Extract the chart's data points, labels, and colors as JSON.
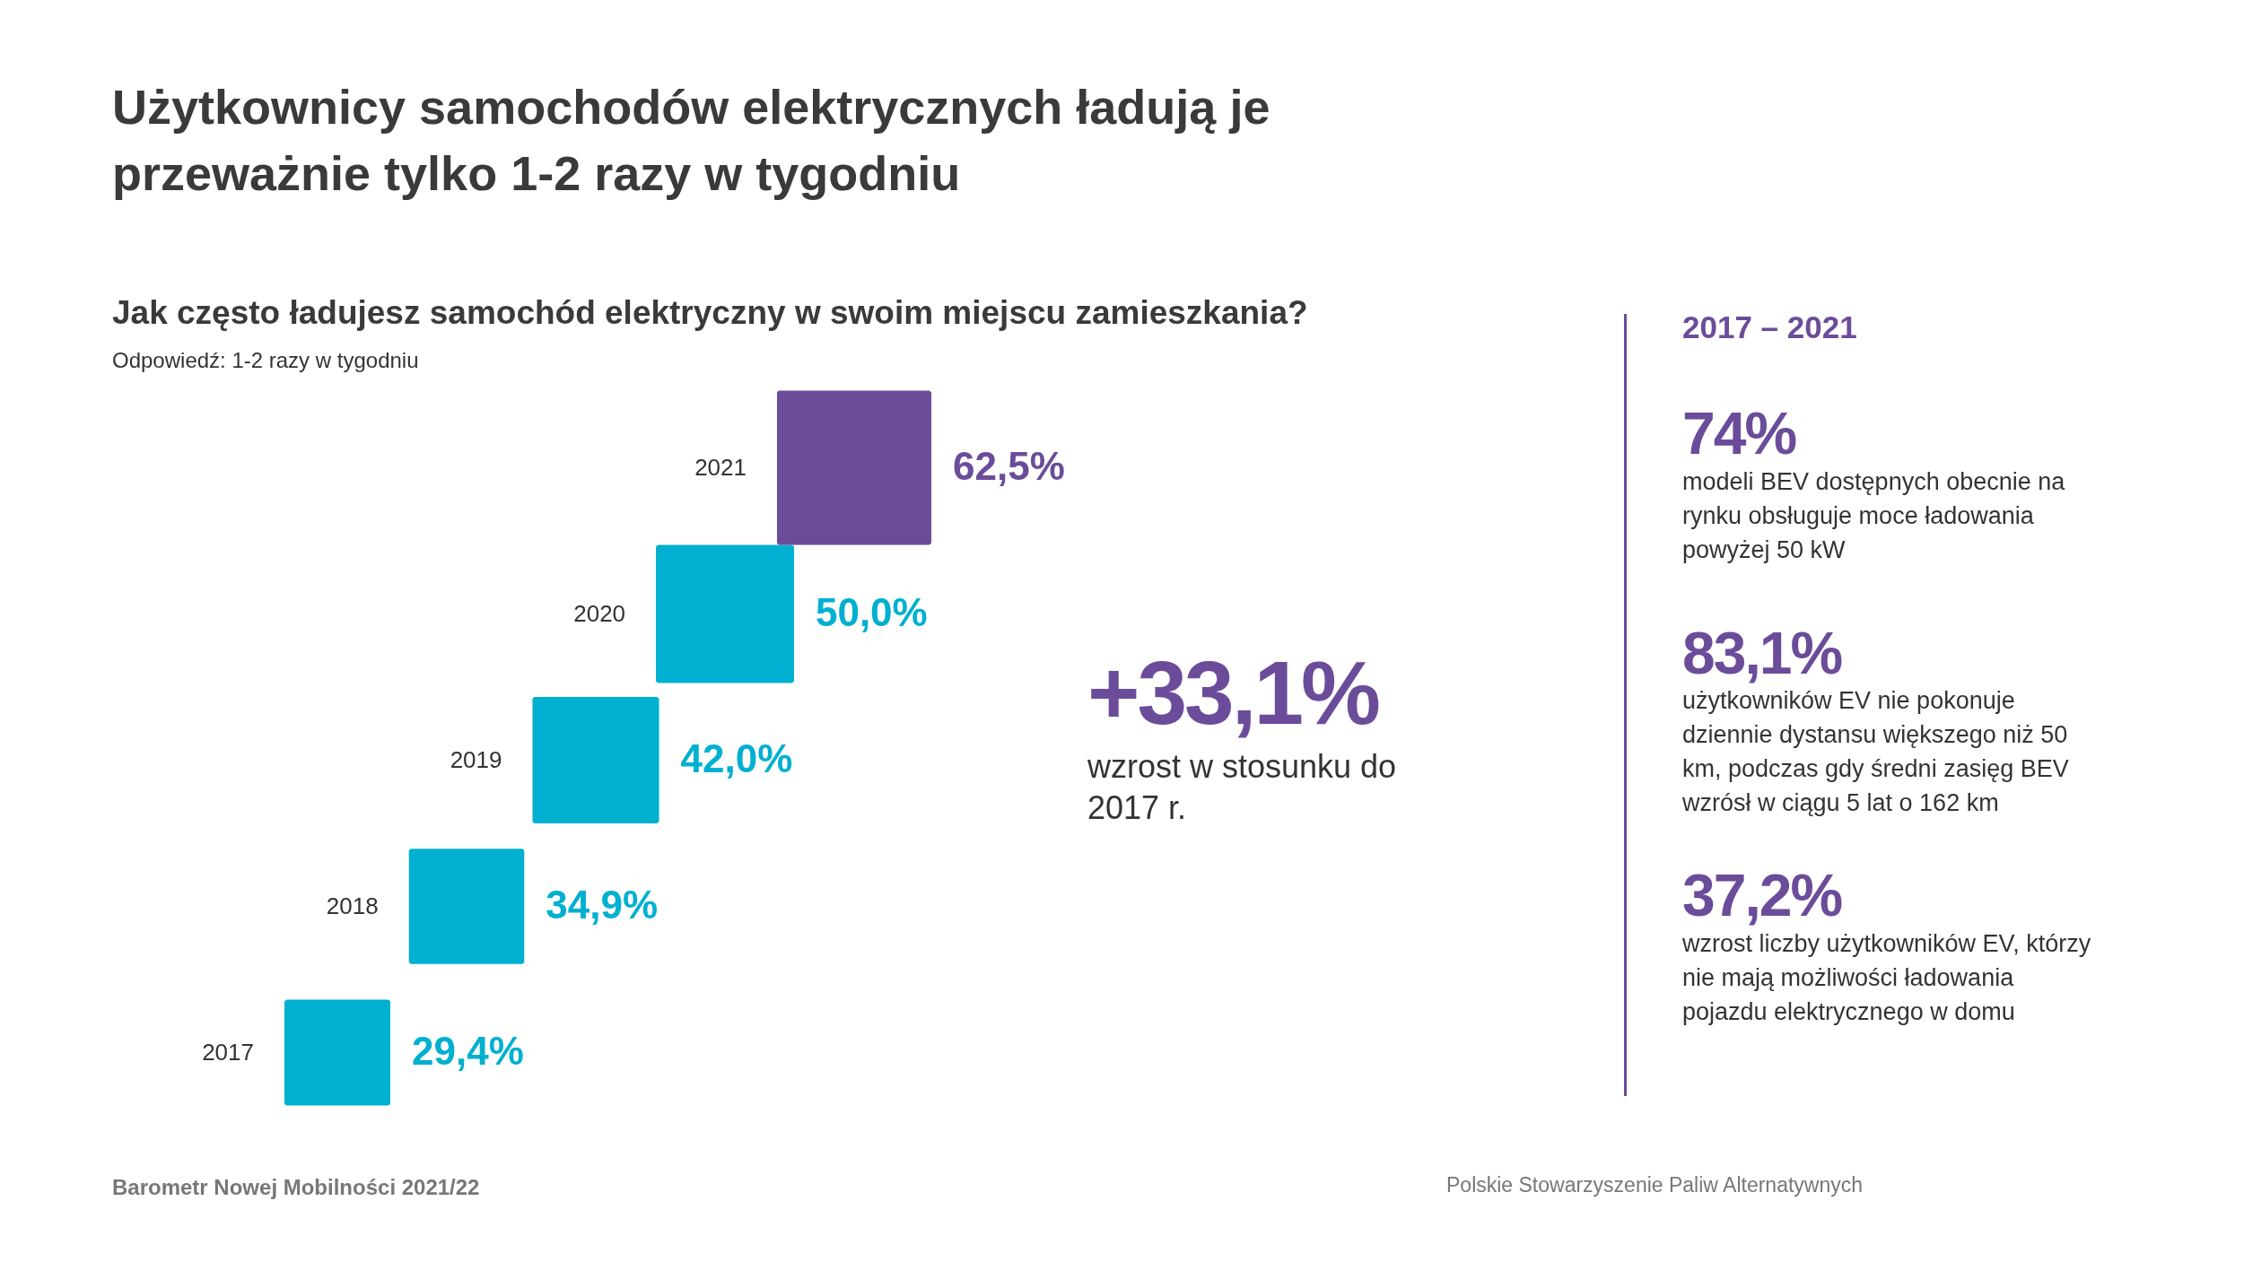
{
  "chart_data": {
    "type": "other",
    "title": "Użytkownicy samochodów elektrycznych ładują je przeważnie tylko 1-2 razy w tygodniu",
    "subtitle": "Jak często ładujesz samochód elektryczny w swoim miejscu zamieszkania?",
    "categories": [
      "2017",
      "2018",
      "2019",
      "2020",
      "2021"
    ],
    "values": [
      29.4,
      34.9,
      42.0,
      50.0,
      62.5
    ],
    "value_labels": [
      "29,4%",
      "34,9%",
      "42,0%",
      "50,0%",
      "62,5%"
    ],
    "colors": [
      "#00b0d1",
      "#00b0d1",
      "#00b0d1",
      "#00b0d1",
      "#6b4c9a"
    ],
    "annotations": [
      "Odpowiedź: 1-2 razy w tygodniu",
      "+33,1%",
      "wzrost w stosunku do 2017 r.",
      "2017 – 2021",
      "74%",
      "modeli BEV dostępnych obecnie na rynku obsługuje moce ładowania powyżej 50 kW",
      "83,1%",
      "użytkowników EV nie pokonuje dziennie dystansu większego niż 50 km, podczas gdy średni zasięg BEV wzrósł w ciągu 5 lat o 162 km",
      "37,2%",
      "wzrost liczby użytkowników EV, którzy nie mają możliwości ładowania pojazdu elektrycznego w domu",
      "Barometr Nowej Mobilności 2021/22",
      "Polskie Stowarzyszenie Paliw Alternatywnych"
    ]
  }
}
